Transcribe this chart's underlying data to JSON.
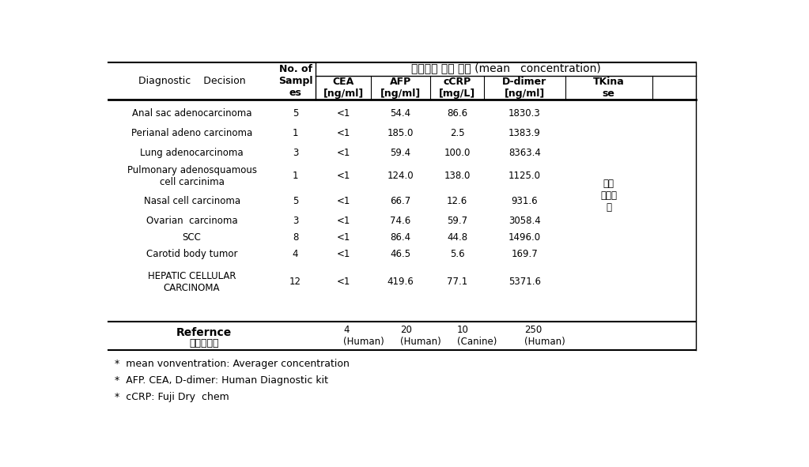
{
  "title_korean": "스크리닝 검사 결과 (mean   concentration)",
  "rows": [
    [
      "Anal sac adenocarcinoma",
      "5",
      "<1",
      "54.4",
      "86.6",
      "1830.3"
    ],
    [
      "Perianal adeno carcinoma",
      "1",
      "<1",
      "185.0",
      "2.5",
      "1383.9"
    ],
    [
      "Lung adenocarcinoma",
      "3",
      "<1",
      "59.4",
      "100.0",
      "8363.4"
    ],
    [
      "Pulmonary adenosquamous\ncell carcinima",
      "1",
      "<1",
      "124.0",
      "138.0",
      "1125.0"
    ],
    [
      "Nasal cell carcinoma",
      "5",
      "<1",
      "66.7",
      "12.6",
      "931.6"
    ],
    [
      "Ovarian  carcinoma",
      "3",
      "<1",
      "74.6",
      "59.7",
      "3058.4"
    ],
    [
      "SCC",
      "8",
      "<1",
      "86.4",
      "44.8",
      "1496.0"
    ],
    [
      "Carotid body tumor",
      "4",
      "<1",
      "46.5",
      "5.6",
      "169.7"
    ],
    [
      "HEPATIC CELLULAR\nCARCINOMA",
      "12",
      "<1",
      "419.6",
      "77.1",
      "5371.6"
    ]
  ],
  "ref_vals": [
    "4\n(Human)",
    "20\n(Human)",
    "10\n(Canine)",
    "250\n(Human)"
  ],
  "footnotes": [
    "*  mean vonventration: Averager concentration",
    "*  AFP. CEA, D-dimer: Human Diagnostic kit",
    "*  cCRP: Fuji Dry  chem"
  ],
  "korean_side_text": "테스\n트준비\n중",
  "bg_color": "#ffffff",
  "text_color": "#000000"
}
